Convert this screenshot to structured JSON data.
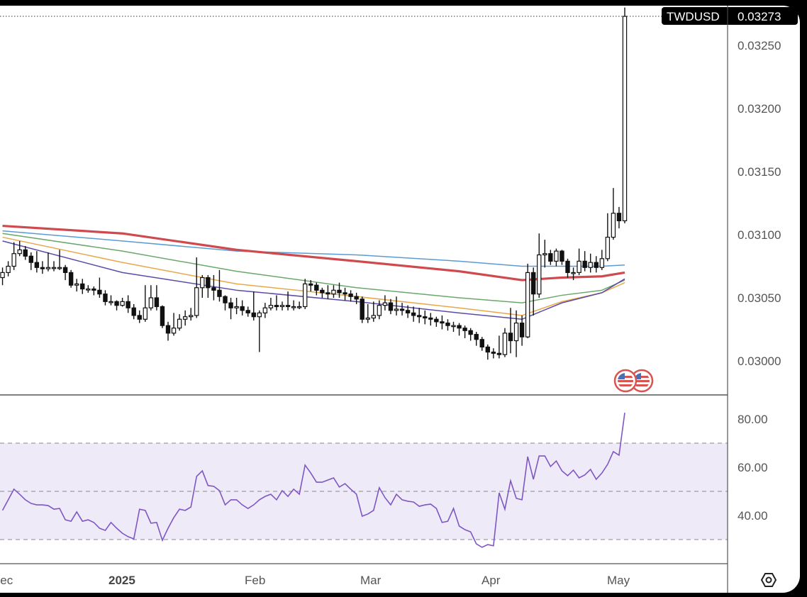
{
  "chart_data": {
    "type": "candlestick",
    "symbol": "TWDUSD",
    "last_price": "0.03273",
    "dates": [
      "2024-12-03",
      "2024-12-04",
      "2024-12-05",
      "2024-12-06",
      "2024-12-09",
      "2024-12-10",
      "2024-12-11",
      "2024-12-12",
      "2024-12-13",
      "2024-12-16",
      "2024-12-17",
      "2024-12-18",
      "2024-12-19",
      "2024-12-20",
      "2024-12-23",
      "2024-12-24",
      "2024-12-25",
      "2024-12-26",
      "2024-12-27",
      "2024-12-30",
      "2024-12-31",
      "2025-01-01",
      "2025-01-02",
      "2025-01-03",
      "2025-01-06",
      "2025-01-07",
      "2025-01-08",
      "2025-01-09",
      "2025-01-10",
      "2025-01-13",
      "2025-01-14",
      "2025-01-15",
      "2025-01-16",
      "2025-01-17",
      "2025-01-20",
      "2025-01-21",
      "2025-01-22",
      "2025-01-23",
      "2025-01-24",
      "2025-01-27",
      "2025-01-28",
      "2025-01-29",
      "2025-01-30",
      "2025-01-31",
      "2025-02-03",
      "2025-02-04",
      "2025-02-05",
      "2025-02-06",
      "2025-02-07",
      "2025-02-10",
      "2025-02-11",
      "2025-02-12",
      "2025-02-13",
      "2025-02-14",
      "2025-02-17",
      "2025-02-18",
      "2025-02-19",
      "2025-02-20",
      "2025-02-21",
      "2025-02-24",
      "2025-02-25",
      "2025-02-26",
      "2025-02-27",
      "2025-02-28",
      "2025-03-03",
      "2025-03-04",
      "2025-03-05",
      "2025-03-06",
      "2025-03-07",
      "2025-03-10",
      "2025-03-11",
      "2025-03-12",
      "2025-03-13",
      "2025-03-14",
      "2025-03-17",
      "2025-03-18",
      "2025-03-19",
      "2025-03-20",
      "2025-03-21",
      "2025-03-24",
      "2025-03-25",
      "2025-03-26",
      "2025-03-27",
      "2025-03-28",
      "2025-03-31",
      "2025-04-01",
      "2025-04-02",
      "2025-04-03",
      "2025-04-04",
      "2025-04-07",
      "2025-04-08",
      "2025-04-09",
      "2025-04-10",
      "2025-04-11",
      "2025-04-14",
      "2025-04-15",
      "2025-04-16",
      "2025-04-17",
      "2025-04-18",
      "2025-04-21",
      "2025-04-22",
      "2025-04-23",
      "2025-04-24",
      "2025-04-25",
      "2025-04-28",
      "2025-04-29",
      "2025-04-30",
      "2025-05-01",
      "2025-05-02",
      "2025-05-05"
    ],
    "open": [
      0.03066,
      0.0307,
      0.03075,
      0.03085,
      0.03088,
      0.03083,
      0.03078,
      0.03074,
      0.03073,
      0.03074,
      0.03074,
      0.03074,
      0.0307,
      0.0306,
      0.03061,
      0.03057,
      0.03057,
      0.03056,
      0.03053,
      0.03047,
      0.03047,
      0.03044,
      0.03047,
      0.03042,
      0.03036,
      0.03033,
      0.03042,
      0.0305,
      0.03043,
      0.03028,
      0.03022,
      0.03026,
      0.03033,
      0.03035,
      0.03036,
      0.03058,
      0.03066,
      0.03058,
      0.03056,
      0.03051,
      0.03046,
      0.03042,
      0.03043,
      0.0304,
      0.03038,
      0.03035,
      0.03038,
      0.03042,
      0.03044,
      0.03043,
      0.03044,
      0.03043,
      0.03043,
      0.03043,
      0.03061,
      0.0306,
      0.03056,
      0.03054,
      0.03053,
      0.03056,
      0.03054,
      0.03053,
      0.03051,
      0.03049,
      0.03033,
      0.03034,
      0.03036,
      0.03044,
      0.03046,
      0.0304,
      0.03041,
      0.0304,
      0.03038,
      0.03036,
      0.03035,
      0.03034,
      0.03033,
      0.03031,
      0.0303,
      0.03028,
      0.03028,
      0.03026,
      0.03024,
      0.03021,
      0.03017,
      0.03011,
      0.03007,
      0.03006,
      0.03005,
      0.03022,
      0.03016,
      0.0303,
      0.03019,
      0.0307,
      0.03053,
      0.03084,
      0.03085,
      0.03079,
      0.03087,
      0.03079,
      0.0307,
      0.0307,
      0.03079,
      0.03074,
      0.03078,
      0.03074,
      0.03081,
      0.03098,
      0.03117,
      0.03111
    ],
    "high": [
      0.03074,
      0.03079,
      0.03094,
      0.03095,
      0.03091,
      0.03086,
      0.03087,
      0.03079,
      0.03086,
      0.03079,
      0.03088,
      0.03076,
      0.03072,
      0.03065,
      0.03065,
      0.0306,
      0.03059,
      0.03066,
      0.03056,
      0.03052,
      0.03048,
      0.0305,
      0.03052,
      0.03045,
      0.0304,
      0.0306,
      0.0306,
      0.0306,
      0.03044,
      0.03031,
      0.03038,
      0.03037,
      0.0304,
      0.03042,
      0.03082,
      0.03068,
      0.03068,
      0.03068,
      0.03072,
      0.03052,
      0.0305,
      0.0305,
      0.03048,
      0.03043,
      0.03055,
      0.0304,
      0.03046,
      0.0305,
      0.03052,
      0.03047,
      0.03055,
      0.03048,
      0.03047,
      0.03065,
      0.03064,
      0.03062,
      0.03058,
      0.0306,
      0.0306,
      0.03062,
      0.03058,
      0.03056,
      0.03054,
      0.03051,
      0.03045,
      0.03047,
      0.03048,
      0.03052,
      0.03049,
      0.03051,
      0.03046,
      0.03044,
      0.03043,
      0.03042,
      0.0304,
      0.03038,
      0.03035,
      0.03036,
      0.03033,
      0.03031,
      0.0303,
      0.03028,
      0.03026,
      0.03023,
      0.03019,
      0.03013,
      0.0301,
      0.0302,
      0.03026,
      0.03042,
      0.0304,
      0.03036,
      0.03077,
      0.03074,
      0.03101,
      0.03096,
      0.03088,
      0.03089,
      0.03088,
      0.03081,
      0.03074,
      0.03089,
      0.03087,
      0.03085,
      0.03083,
      0.03088,
      0.03117,
      0.03137,
      0.03122,
      0.0328
    ],
    "low": [
      0.0306,
      0.03067,
      0.03072,
      0.03083,
      0.0308,
      0.03072,
      0.0307,
      0.03069,
      0.03071,
      0.03071,
      0.03072,
      0.03064,
      0.03058,
      0.03055,
      0.03053,
      0.03054,
      0.03052,
      0.0305,
      0.03044,
      0.03044,
      0.0304,
      0.03043,
      0.03038,
      0.03033,
      0.0303,
      0.03031,
      0.0304,
      0.0304,
      0.03026,
      0.03016,
      0.0302,
      0.03024,
      0.03028,
      0.03032,
      0.03034,
      0.0305,
      0.0305,
      0.03048,
      0.03047,
      0.0304,
      0.03033,
      0.03037,
      0.03036,
      0.03035,
      0.03032,
      0.03007,
      0.03034,
      0.0304,
      0.0304,
      0.0304,
      0.0304,
      0.0304,
      0.03041,
      0.03041,
      0.03055,
      0.03052,
      0.0305,
      0.03049,
      0.0305,
      0.0305,
      0.03048,
      0.03047,
      0.03045,
      0.0303,
      0.0303,
      0.03031,
      0.03033,
      0.0304,
      0.03037,
      0.03036,
      0.03036,
      0.03034,
      0.03031,
      0.0303,
      0.03029,
      0.03028,
      0.03027,
      0.03025,
      0.03024,
      0.03023,
      0.0302,
      0.03018,
      0.03016,
      0.03012,
      0.03008,
      0.03001,
      0.03002,
      0.03002,
      0.03003,
      0.03006,
      0.03003,
      0.03012,
      0.03018,
      0.03036,
      0.0305,
      0.03074,
      0.03076,
      0.03075,
      0.03076,
      0.03066,
      0.03064,
      0.03068,
      0.03071,
      0.0307,
      0.0307,
      0.03072,
      0.03079,
      0.03096,
      0.03105,
      0.03109
    ],
    "close": [
      0.0307,
      0.03075,
      0.03085,
      0.03088,
      0.03083,
      0.03078,
      0.03074,
      0.03073,
      0.03074,
      0.03074,
      0.03074,
      0.0307,
      0.0306,
      0.03061,
      0.03057,
      0.03057,
      0.03056,
      0.03053,
      0.03047,
      0.03047,
      0.03044,
      0.03047,
      0.03042,
      0.03036,
      0.03033,
      0.03042,
      0.0305,
      0.03043,
      0.03028,
      0.03022,
      0.03026,
      0.03033,
      0.03035,
      0.03036,
      0.03058,
      0.03066,
      0.03058,
      0.03056,
      0.03051,
      0.03046,
      0.03042,
      0.03043,
      0.0304,
      0.03038,
      0.03035,
      0.03038,
      0.03042,
      0.03044,
      0.03043,
      0.03044,
      0.03043,
      0.03043,
      0.03043,
      0.03061,
      0.0306,
      0.03056,
      0.03054,
      0.03053,
      0.03056,
      0.03054,
      0.03053,
      0.03051,
      0.03049,
      0.03033,
      0.03034,
      0.03036,
      0.03044,
      0.03046,
      0.0304,
      0.03041,
      0.0304,
      0.03038,
      0.03036,
      0.03035,
      0.03034,
      0.03033,
      0.03031,
      0.0303,
      0.03028,
      0.03028,
      0.03026,
      0.03024,
      0.03021,
      0.03017,
      0.03011,
      0.03007,
      0.03006,
      0.03005,
      0.03022,
      0.03016,
      0.0303,
      0.03019,
      0.0307,
      0.03053,
      0.03084,
      0.03085,
      0.03079,
      0.03087,
      0.03079,
      0.0307,
      0.0307,
      0.03079,
      0.03074,
      0.03078,
      0.03074,
      0.03081,
      0.03098,
      0.03117,
      0.03111,
      0.03273
    ],
    "moving_averages": [
      {
        "color": "#5b9bd5",
        "points": [
          [
            "2024-12-03",
            0.03103
          ],
          [
            "2025-01-01",
            0.03095
          ],
          [
            "2025-01-29",
            0.03087
          ],
          [
            "2025-02-27",
            0.03084
          ],
          [
            "2025-03-25",
            0.03079
          ],
          [
            "2025-04-09",
            0.03075
          ],
          [
            "2025-04-18",
            0.03075
          ],
          [
            "2025-04-29",
            0.03075
          ],
          [
            "2025-05-05",
            0.03076
          ]
        ]
      },
      {
        "color": "#6aa86a",
        "points": [
          [
            "2024-12-03",
            0.03101
          ],
          [
            "2025-01-01",
            0.03087
          ],
          [
            "2025-01-29",
            0.03071
          ],
          [
            "2025-02-27",
            0.03058
          ],
          [
            "2025-03-25",
            0.0305
          ],
          [
            "2025-04-09",
            0.03046
          ],
          [
            "2025-04-18",
            0.03052
          ],
          [
            "2025-04-29",
            0.03056
          ],
          [
            "2025-05-05",
            0.03064
          ]
        ]
      },
      {
        "color": "#e8a84a",
        "points": [
          [
            "2024-12-03",
            0.03098
          ],
          [
            "2025-01-01",
            0.03078
          ],
          [
            "2025-01-29",
            0.03061
          ],
          [
            "2025-02-27",
            0.03051
          ],
          [
            "2025-03-25",
            0.03042
          ],
          [
            "2025-04-09",
            0.03036
          ],
          [
            "2025-04-18",
            0.03047
          ],
          [
            "2025-04-29",
            0.03054
          ],
          [
            "2025-05-05",
            0.03062
          ]
        ]
      },
      {
        "color": "#5b4aa6",
        "points": [
          [
            "2024-12-03",
            0.03095
          ],
          [
            "2025-01-01",
            0.0307
          ],
          [
            "2025-01-29",
            0.03056
          ],
          [
            "2025-02-27",
            0.03047
          ],
          [
            "2025-03-25",
            0.03038
          ],
          [
            "2025-04-09",
            0.03033
          ],
          [
            "2025-04-18",
            0.03046
          ],
          [
            "2025-04-29",
            0.03054
          ],
          [
            "2025-05-05",
            0.03065
          ]
        ]
      },
      {
        "color": "#cf4a4f",
        "points": [
          [
            "2024-12-03",
            0.03107
          ],
          [
            "2025-01-01",
            0.03101
          ],
          [
            "2025-01-29",
            0.03088
          ],
          [
            "2025-02-27",
            0.03079
          ],
          [
            "2025-03-25",
            0.03071
          ],
          [
            "2025-04-09",
            0.03064
          ],
          [
            "2025-04-18",
            0.03066
          ],
          [
            "2025-04-29",
            0.03067
          ],
          [
            "2025-05-05",
            0.0307
          ]
        ]
      }
    ],
    "rsi": {
      "color": "#7e57c2",
      "band_color": "#efeaf8",
      "levels": [
        70,
        50,
        30
      ],
      "values": [
        42.1,
        46.5,
        50.9,
        48.8,
        46.5,
        45.0,
        44.4,
        44.4,
        44.1,
        42.6,
        42.9,
        38.2,
        37.6,
        41.5,
        37.6,
        38.2,
        37.1,
        34.7,
        33.8,
        37.1,
        34.7,
        32.6,
        31.2,
        30.3,
        42.6,
        42.1,
        36.8,
        37.1,
        29.7,
        34.7,
        39.1,
        42.6,
        42.1,
        43.5,
        56.2,
        58.5,
        52.4,
        52.1,
        50.3,
        44.4,
        46.5,
        46.5,
        44.4,
        42.9,
        44.4,
        46.5,
        47.9,
        48.8,
        46.5,
        50.3,
        47.9,
        50.9,
        48.8,
        60.9,
        57.6,
        53.8,
        53.8,
        54.7,
        55.6,
        51.8,
        53.2,
        50.9,
        48.8,
        39.7,
        40.6,
        42.1,
        51.5,
        47.4,
        44.4,
        48.8,
        46.5,
        45.9,
        45.6,
        43.8,
        44.4,
        44.7,
        42.9,
        37.1,
        37.6,
        42.9,
        35.6,
        34.1,
        33.2,
        28.2,
        26.8,
        27.9,
        27.4,
        49.4,
        42.6,
        54.4,
        47.1,
        46.5,
        64.4,
        55.0,
        64.7,
        64.7,
        60.3,
        62.6,
        58.5,
        56.5,
        58.8,
        55.6,
        56.8,
        59.1,
        55.0,
        57.6,
        61.2,
        66.5,
        65.0,
        82.6
      ],
      "ticks": [
        80,
        60,
        40
      ],
      "tick_labels": [
        "80.00",
        "60.00",
        "40.00"
      ]
    },
    "y_ticks": [
      0.0325,
      0.032,
      0.0315,
      0.031,
      0.0305,
      0.03
    ],
    "y_tick_labels": [
      "0.03250",
      "0.03200",
      "0.03150",
      "0.03100",
      "0.03050",
      "0.03000"
    ],
    "x_tick_labels": [
      "Dec",
      "2025",
      "Feb",
      "Mar",
      "Apr",
      "May"
    ],
    "event_icons": [
      "us-flag-icon",
      "us-flag-icon"
    ],
    "settings_icon": "hexagon-settings-icon"
  }
}
